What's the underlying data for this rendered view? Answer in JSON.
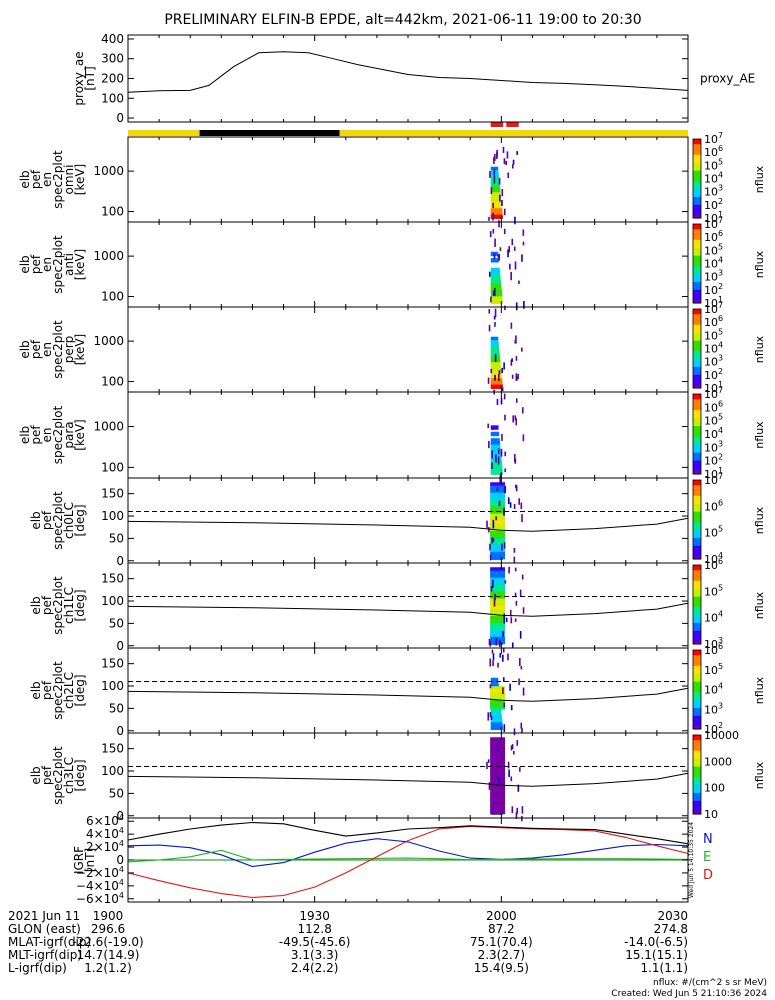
{
  "title": "PRELIMINARY ELFIN-B EPDE, alt=442km, 2021-06-11 19:00 to 20:30",
  "time_axis": {
    "start_min": 0,
    "end_min": 90,
    "major_ticks": [
      0,
      30,
      60,
      90
    ]
  },
  "colors": {
    "yellow_bar": "#f6d800",
    "black_bar": "#000000",
    "red_marker": "#e51a1a",
    "bx": "#0018c8",
    "by": "#22b422",
    "bz": "#e01818",
    "bt": "#000000"
  },
  "science_bar": {
    "segments": [
      {
        "type": "yellow",
        "from": 0,
        "to": 11.5
      },
      {
        "type": "black",
        "from": 11.5,
        "to": 34
      },
      {
        "type": "yellow",
        "from": 34,
        "to": 90
      }
    ],
    "markers": [
      {
        "from": 58.3,
        "to": 60.3
      },
      {
        "from": 60.8,
        "to": 62.8
      }
    ]
  },
  "panels": [
    {
      "id": "ae",
      "type": "line",
      "ylabel_lines": [
        "proxy_ae",
        "[nT]"
      ],
      "right_label": "proxy_AE",
      "ylim": [
        -20,
        420
      ],
      "ticks": [
        {
          "v": 0,
          "label": "0"
        },
        {
          "v": 100,
          "label": "100"
        },
        {
          "v": 200,
          "label": "200"
        },
        {
          "v": 300,
          "label": "300"
        },
        {
          "v": 400,
          "label": "400"
        }
      ]
    },
    {
      "id": "omni",
      "type": "spec_energy",
      "ylabel_lines": [
        "elb",
        "pef",
        "en",
        "spec2plot",
        "omni",
        "[keV]"
      ],
      "ticks": [
        {
          "v": 100,
          "label": "100"
        },
        {
          "v": 1000,
          "label": "1000"
        }
      ],
      "cb_label": "nflux",
      "cb_ticks": [
        "10",
        "10",
        "10",
        "10",
        "10",
        "10",
        "10"
      ],
      "cb_exps": [
        "1",
        "2",
        "3",
        "4",
        "5",
        "6",
        "7"
      ]
    },
    {
      "id": "anti",
      "type": "spec_energy",
      "ylabel_lines": [
        "elb",
        "pef",
        "en",
        "spec2plot",
        "anti",
        "[keV]"
      ],
      "ticks": [
        {
          "v": 100,
          "label": "100"
        },
        {
          "v": 1000,
          "label": "1000"
        }
      ],
      "cb_label": "nflux",
      "cb_ticks": [
        "10",
        "10",
        "10",
        "10",
        "10",
        "10",
        "10"
      ],
      "cb_exps": [
        "1",
        "2",
        "3",
        "4",
        "5",
        "6",
        "7"
      ]
    },
    {
      "id": "perp",
      "type": "spec_energy",
      "ylabel_lines": [
        "elb",
        "pef",
        "en",
        "spec2plot",
        "perp",
        "[keV]"
      ],
      "ticks": [
        {
          "v": 100,
          "label": "100"
        },
        {
          "v": 1000,
          "label": "1000"
        }
      ],
      "cb_label": "nflux",
      "cb_ticks": [
        "10",
        "10",
        "10",
        "10",
        "10",
        "10",
        "10"
      ],
      "cb_exps": [
        "1",
        "2",
        "3",
        "4",
        "5",
        "6",
        "7"
      ]
    },
    {
      "id": "para",
      "type": "spec_energy",
      "ylabel_lines": [
        "elb",
        "pef",
        "en",
        "spec2plot",
        "para",
        "[keV]"
      ],
      "ticks": [
        {
          "v": 100,
          "label": "100"
        },
        {
          "v": 1000,
          "label": "1000"
        }
      ],
      "cb_label": "nflux",
      "cb_ticks": [
        "10",
        "10",
        "10",
        "10",
        "10",
        "10",
        "10"
      ],
      "cb_exps": [
        "1",
        "2",
        "3",
        "4",
        "5",
        "6",
        "7"
      ]
    },
    {
      "id": "ch0",
      "type": "spec_angle",
      "ylabel_lines": [
        "elb",
        "pef",
        "spec2plot",
        "ch0LC",
        "[deg]"
      ],
      "ticks": [
        {
          "v": 0,
          "label": "0"
        },
        {
          "v": 50,
          "label": "50"
        },
        {
          "v": 100,
          "label": "100"
        },
        {
          "v": 150,
          "label": "150"
        }
      ],
      "cb_label": "nflux",
      "cb_ticks": [
        "10",
        "10",
        "10",
        "10"
      ],
      "cb_exps": [
        "4",
        "5",
        "6",
        "7"
      ]
    },
    {
      "id": "ch1",
      "type": "spec_angle",
      "ylabel_lines": [
        "elb",
        "pef",
        "spec2plot",
        "ch1LC",
        "[deg]"
      ],
      "ticks": [
        {
          "v": 0,
          "label": "0"
        },
        {
          "v": 50,
          "label": "50"
        },
        {
          "v": 100,
          "label": "100"
        },
        {
          "v": 150,
          "label": "150"
        }
      ],
      "cb_label": "nflux",
      "cb_ticks": [
        "10",
        "10",
        "10",
        "10"
      ],
      "cb_exps": [
        "3",
        "4",
        "5",
        "6"
      ]
    },
    {
      "id": "ch2",
      "type": "spec_angle",
      "ylabel_lines": [
        "elb",
        "pef",
        "spec2plot",
        "ch2LC",
        "[deg]"
      ],
      "ticks": [
        {
          "v": 0,
          "label": "0"
        },
        {
          "v": 50,
          "label": "50"
        },
        {
          "v": 100,
          "label": "100"
        },
        {
          "v": 150,
          "label": "150"
        }
      ],
      "cb_label": "nflux",
      "cb_ticks": [
        "10",
        "10",
        "10",
        "10",
        "10"
      ],
      "cb_exps": [
        "2",
        "3",
        "4",
        "5",
        "6"
      ]
    },
    {
      "id": "ch3",
      "type": "spec_angle",
      "ylabel_lines": [
        "elb",
        "pef",
        "spec2plot",
        "ch3LC",
        "[deg]"
      ],
      "ticks": [
        {
          "v": 0,
          "label": "0"
        },
        {
          "v": 50,
          "label": "50"
        },
        {
          "v": 100,
          "label": "100"
        },
        {
          "v": 150,
          "label": "150"
        }
      ],
      "cb_label": "nflux",
      "cb_ticks": [
        "10",
        "100",
        "1000",
        "10000"
      ],
      "cb_exps": [
        "",
        "",
        "",
        ""
      ]
    },
    {
      "id": "igrf",
      "type": "line",
      "ylabel_lines": [
        "IGRF",
        "[nT]"
      ],
      "ylim": [
        -65000,
        65000
      ],
      "ticks": [
        {
          "v": 60000,
          "label": "6×10",
          "exp": "4"
        },
        {
          "v": 40000,
          "label": "4×10",
          "exp": "4"
        },
        {
          "v": 20000,
          "label": "2×10",
          "exp": "4"
        },
        {
          "v": 0,
          "label": "0"
        },
        {
          "v": -20000,
          "label": "−2×10",
          "exp": "4"
        },
        {
          "v": -40000,
          "label": "−4×10",
          "exp": "4"
        },
        {
          "v": -60000,
          "label": "−6×10",
          "exp": "4"
        }
      ],
      "legend": [
        {
          "text": "N",
          "color": "#0018c8"
        },
        {
          "text": "E",
          "color": "#22b422"
        },
        {
          "text": "D",
          "color": "#e01818"
        }
      ]
    }
  ],
  "chart_data": {
    "type": "line",
    "title": "PRELIMINARY ELFIN-B EPDE, alt=442km, 2021-06-11 19:00 to 20:30",
    "x_unit": "minutes after 2021-06-11 19:00",
    "proxy_ae": {
      "x": [
        0,
        5,
        10,
        13,
        17,
        21,
        25,
        29,
        33,
        37,
        41,
        45,
        50,
        55,
        60,
        65,
        70,
        75,
        80,
        85,
        90
      ],
      "y": [
        130,
        138,
        140,
        165,
        260,
        330,
        335,
        330,
        300,
        270,
        245,
        220,
        205,
        200,
        190,
        180,
        175,
        168,
        160,
        150,
        140
      ]
    },
    "igrf": {
      "x": [
        0,
        5,
        10,
        15,
        20,
        25,
        30,
        35,
        40,
        45,
        50,
        55,
        60,
        65,
        70,
        75,
        80,
        85,
        90
      ],
      "series": [
        {
          "name": "N",
          "y": [
            22000,
            23000,
            19000,
            8000,
            -10000,
            -4000,
            12000,
            26000,
            33000,
            28000,
            14000,
            3000,
            1000,
            3000,
            8000,
            15000,
            22000,
            24000,
            22000
          ]
        },
        {
          "name": "E",
          "y": [
            -3000,
            0,
            5000,
            15000,
            0,
            1000,
            1500,
            2000,
            2500,
            3000,
            2000,
            500,
            1000,
            1500,
            2000,
            2000,
            2000,
            1500,
            1000
          ]
        },
        {
          "name": "D",
          "y": [
            -20000,
            -32000,
            -43000,
            -52000,
            -58000,
            -55000,
            -42000,
            -20000,
            5000,
            30000,
            48000,
            52000,
            50000,
            48000,
            47000,
            45000,
            35000,
            22000,
            10000
          ]
        },
        {
          "name": "|B|",
          "y": [
            31000,
            40000,
            48000,
            54000,
            58000,
            56000,
            46000,
            37000,
            42000,
            48000,
            50000,
            53000,
            51000,
            49000,
            48000,
            47000,
            40000,
            33000,
            25000
          ]
        }
      ]
    },
    "pitch_angle_reference": {
      "loss_cone_dashed_deg": 110,
      "solid_deg": [
        88,
        85,
        80,
        75,
        68,
        66,
        72,
        82,
        95
      ],
      "solid_x": [
        0,
        20,
        40,
        55,
        60,
        65,
        75,
        85,
        90
      ]
    },
    "spectrogram_activity_window_min": [
      57.5,
      63.5
    ]
  },
  "footer": {
    "rows": [
      {
        "label": "2021 Jun 11",
        "values": [
          "1900",
          "1930",
          "2000",
          "2030"
        ]
      },
      {
        "label": "GLON (east)",
        "values": [
          "296.6",
          "112.8",
          "87.2",
          "274.8"
        ]
      },
      {
        "label": "MLAT-igrf(dip)",
        "values": [
          "-22.6(-19.0)",
          "-49.5(-45.6)",
          "75.1(70.4)",
          "-14.0(-6.5)"
        ]
      },
      {
        "label": "MLT-igrf(dip)",
        "values": [
          "14.7(14.9)",
          "3.1(3.3)",
          "2.3(2.7)",
          "15.1(15.1)"
        ]
      },
      {
        "label": "L-igrf(dip)",
        "values": [
          "1.2(1.2)",
          "2.4(2.2)",
          "15.4(9.5)",
          "1.1(1.1)"
        ]
      }
    ],
    "nflux_note": "nflux: #/(cm^2 s sr MeV)",
    "created": "Created: Wed Jun  5 21:10:36 2024",
    "side_stamp": "Wed Jun  5 14:10:35 2024"
  }
}
